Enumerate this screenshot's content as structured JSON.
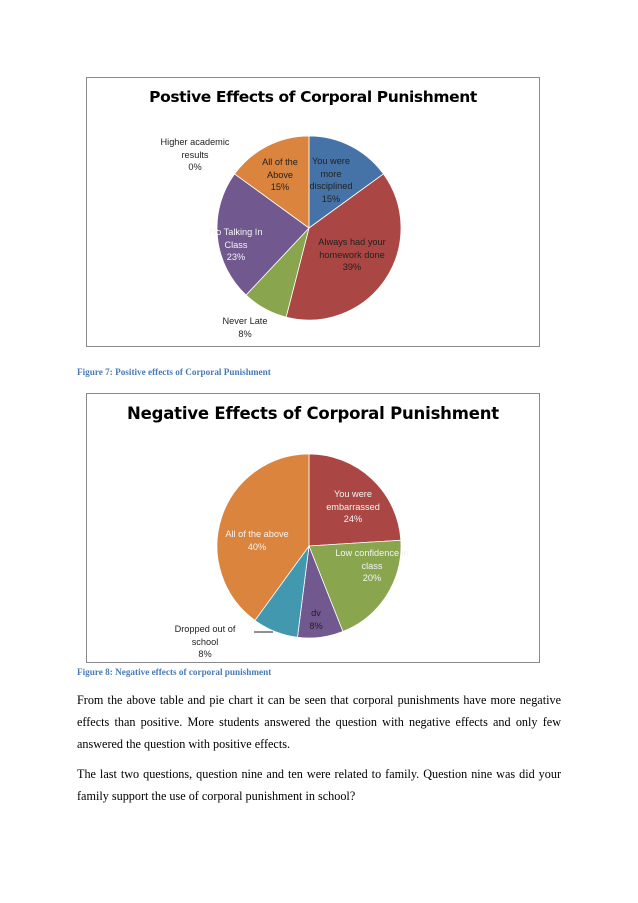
{
  "chart_data": [
    {
      "type": "pie",
      "title": "Postive Effects of Corporal Punishment",
      "slices": [
        {
          "label": [
            "You were",
            "more",
            "disciplined"
          ],
          "percent_text": "15%",
          "value": 15,
          "color": "#4572a7"
        },
        {
          "label": [
            "Always had your",
            "homework done"
          ],
          "percent_text": "39%",
          "value": 39,
          "color": "#aa4643"
        },
        {
          "label": [
            "Never Late"
          ],
          "percent_text": "8%",
          "value": 8,
          "color": "#89a54e"
        },
        {
          "label": [
            "No Talking In",
            "Class"
          ],
          "percent_text": "23%",
          "value": 23,
          "color": "#71588f"
        },
        {
          "label": [
            "All of the",
            "Above"
          ],
          "percent_text": "15%",
          "value": 15,
          "color": "#db843d"
        },
        {
          "label": [
            "Higher academic",
            "results"
          ],
          "percent_text": "0%",
          "value": 0,
          "color": "#4198af"
        }
      ],
      "legend": "none"
    },
    {
      "type": "pie",
      "title": "Negative Effects of Corporal Punishment",
      "slices": [
        {
          "label": [
            "You were",
            "embarrassed"
          ],
          "percent_text": "24%",
          "value": 24,
          "color": "#aa4643"
        },
        {
          "label": [
            "Low confidence in",
            "class"
          ],
          "percent_text": "20%",
          "value": 20,
          "color": "#89a54e"
        },
        {
          "label": [
            "dv"
          ],
          "percent_text": "8%",
          "value": 8,
          "color": "#71588f"
        },
        {
          "label": [
            "Dropped out of",
            "school"
          ],
          "percent_text": "8%",
          "value": 8,
          "color": "#4198af"
        },
        {
          "label": [
            "All of the above"
          ],
          "percent_text": "40%",
          "value": 40,
          "color": "#db843d"
        }
      ],
      "legend": "none"
    }
  ],
  "captions": {
    "fig7": "Figure 7: Positive effects of Corporal Punishment",
    "fig8": "Figure 8: Negative effects of corporal punishment"
  },
  "paragraphs": {
    "p1": [
      "From the above table and pie chart it can be seen that corporal punishments have more negative",
      "effects than positive. More students answered the question with negative effects and only few",
      "answered the question with positive effects."
    ],
    "p2": [
      "The last two questions, question nine and ten were related to family. Question nine was did your",
      "family support the use of corporal punishment in school?"
    ]
  }
}
